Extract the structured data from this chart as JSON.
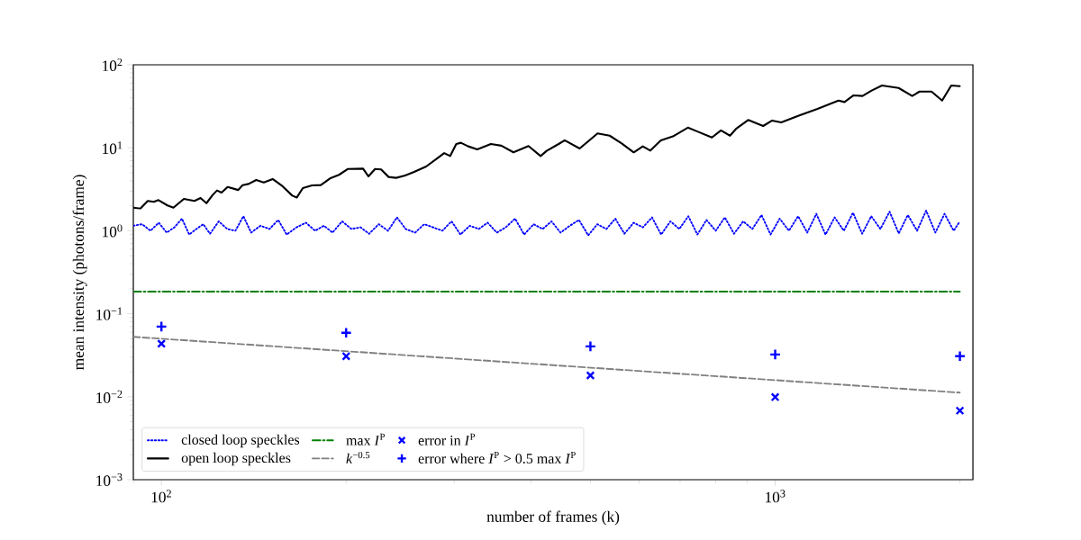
{
  "chart_data": {
    "type": "line",
    "log": "xy",
    "xlabel": "number of frames (k)",
    "ylabel": "mean intensity (photons/frame)",
    "xlim": [
      90,
      2100
    ],
    "ylim": [
      0.001,
      100
    ],
    "xticks": [
      {
        "value": 100,
        "label": "10$^{2}$"
      },
      {
        "value": 1000,
        "label": "10$^{3}$"
      }
    ],
    "yticks": [
      {
        "value": 0.001,
        "label": "10$^{−3}$"
      },
      {
        "value": 0.01,
        "label": "10$^{−2}$"
      },
      {
        "value": 0.1,
        "label": "10$^{−1}$"
      },
      {
        "value": 1,
        "label": "10$^{0}$"
      },
      {
        "value": 10,
        "label": "10$^{1}$"
      },
      {
        "value": 100,
        "label": "10$^{2}$"
      }
    ],
    "legend": "bottom left",
    "series": [
      {
        "name": "closed loop speckles",
        "line_style": "dotted",
        "color": "#0000ff",
        "x": [
          90,
          93,
          96,
          99,
          102,
          105,
          108,
          111,
          114,
          117,
          120,
          124,
          128,
          132,
          136,
          140,
          145,
          150,
          155,
          160,
          166,
          172,
          178,
          184,
          190,
          197,
          204,
          211,
          218,
          226,
          234,
          242,
          250,
          259,
          268,
          277,
          287,
          297,
          307,
          318,
          329,
          340,
          352,
          364,
          377,
          390,
          404,
          418,
          432,
          447,
          463,
          479,
          496,
          513,
          531,
          549,
          568,
          588,
          609,
          630,
          652,
          675,
          698,
          722,
          747,
          773,
          800,
          828,
          857,
          887,
          918,
          950,
          983,
          1017,
          1053,
          1090,
          1128,
          1167,
          1208,
          1250,
          1294,
          1339,
          1386,
          1434,
          1484,
          1536,
          1590,
          1645,
          1703,
          1762,
          1824,
          1888,
          1954,
          2000
        ],
        "values": [
          1.15,
          1.2,
          1.0,
          1.25,
          0.95,
          1.1,
          1.4,
          0.9,
          1.05,
          1.2,
          0.92,
          1.3,
          1.05,
          1.0,
          1.5,
          0.95,
          1.15,
          1.05,
          1.35,
          0.9,
          1.1,
          1.25,
          1.0,
          1.15,
          0.95,
          1.3,
          1.05,
          1.1,
          0.92,
          1.2,
          1.0,
          1.45,
          1.05,
          0.95,
          1.2,
          1.1,
          1.0,
          1.3,
          0.9,
          1.15,
          1.05,
          1.25,
          0.95,
          1.1,
          1.4,
          0.9,
          1.2,
          1.05,
          1.3,
          0.95,
          1.15,
          1.35,
          0.88,
          1.2,
          1.05,
          1.4,
          0.92,
          1.25,
          1.1,
          1.45,
          0.9,
          1.3,
          1.05,
          1.5,
          0.9,
          1.35,
          1.0,
          1.45,
          0.92,
          1.3,
          1.05,
          1.55,
          0.9,
          1.4,
          1.0,
          1.5,
          0.95,
          1.6,
          0.9,
          1.45,
          1.0,
          1.65,
          0.92,
          1.5,
          1.05,
          1.7,
          0.93,
          1.55,
          1.0,
          1.75,
          0.95,
          1.6,
          1.0,
          1.3
        ]
      },
      {
        "name": "open loop speckles",
        "line_style": "solid",
        "color": "#000000",
        "x": [
          90,
          92.4,
          95,
          97.2,
          98.9,
          102.3,
          104.6,
          108.8,
          113.2,
          115.8,
          118.4,
          121.2,
          123.2,
          125.3,
          128.2,
          133.4,
          135.6,
          138.7,
          142.7,
          146.8,
          151.8,
          157,
          163.4,
          166.2,
          170,
          175.9,
          181.9,
          188.2,
          194.7,
          201.4,
          213.1,
          217.4,
          222.9,
          228,
          234.5,
          241.2,
          249.5,
          258.1,
          270,
          282.5,
          288.9,
          295.5,
          302.3,
          307.5,
          316.2,
          327.1,
          344.2,
          358.1,
          374.6,
          396.4,
          414.8,
          424.3,
          443.8,
          454,
          480.2,
          513.6,
          537.5,
          562.3,
          588.3,
          608.6,
          626.1,
          651.2,
          681.4,
          720.8,
          745.6,
          788.8,
          816,
          844.1,
          863.4,
          903.7,
          955.9,
          988.8,
          1023,
          1095,
          1172,
          1268,
          1297,
          1342,
          1388,
          1436,
          1493,
          1589,
          1672,
          1719,
          1798,
          1871,
          1936,
          2000
        ],
        "values": [
          1.9,
          1.85,
          2.29,
          2.23,
          2.34,
          2.02,
          1.9,
          2.42,
          2.29,
          2.48,
          2.15,
          2.7,
          3.06,
          2.88,
          3.37,
          3.1,
          3.55,
          3.67,
          4.09,
          3.82,
          4.2,
          3.52,
          2.65,
          2.52,
          3.27,
          3.52,
          3.55,
          4.27,
          4.72,
          5.56,
          5.61,
          4.52,
          5.56,
          5.48,
          4.45,
          4.34,
          4.63,
          5.12,
          5.95,
          7.63,
          8.63,
          7.96,
          11.1,
          11.5,
          10.4,
          9.56,
          11.1,
          10.6,
          8.81,
          10.5,
          7.96,
          9.17,
          11.1,
          12.3,
          9.8,
          14.9,
          14,
          11.3,
          8.81,
          10.4,
          9.25,
          12.3,
          13.7,
          17.5,
          15.8,
          13.3,
          16.2,
          14,
          16.9,
          21.6,
          18.3,
          21.3,
          20.2,
          24.5,
          29.4,
          37.1,
          35.6,
          42.8,
          42.1,
          48.9,
          56.3,
          52.6,
          42.1,
          47.6,
          47.6,
          37.1,
          56.3,
          55.3
        ]
      },
      {
        "name": "max *I*$^{P}$",
        "line_style": "dashdot",
        "color": "#008000",
        "x": [
          90,
          2000
        ],
        "values": [
          0.185,
          0.185
        ]
      },
      {
        "name": "*k*$^{−0.5}$",
        "line_style": "dashed",
        "color": "#808080",
        "x": [
          90,
          2000
        ],
        "values": [
          0.0527,
          0.0112
        ]
      },
      {
        "name": "error in *I*$^{P}$",
        "type": "scatter",
        "marker": "cross",
        "color": "#0000ff",
        "x": [
          100,
          200,
          500,
          1000,
          2000
        ],
        "values": [
          0.0435,
          0.0308,
          0.0181,
          0.0099,
          0.0068
        ]
      },
      {
        "name": "error where *I*$^{P}$ > 0.5 max *I*$^{P}$",
        "type": "scatter",
        "marker": "plus",
        "color": "#0000ff",
        "x": [
          100,
          200,
          500,
          1000,
          2000
        ],
        "values": [
          0.07,
          0.059,
          0.0404,
          0.0323,
          0.0308
        ]
      }
    ]
  }
}
